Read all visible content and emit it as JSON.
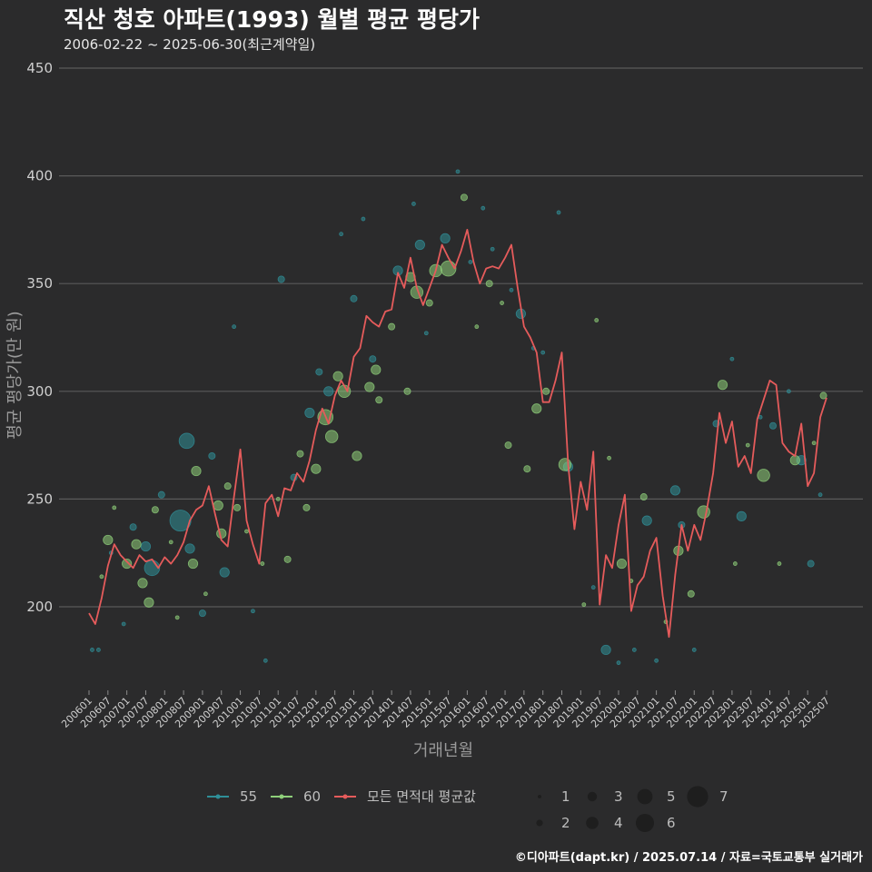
{
  "header": {
    "title": "직산 청호 아파트(1993) 월별 평균 평당가",
    "subtitle": "2006-02-22 ~ 2025-06-30(최근계약일)"
  },
  "footer": {
    "credit": "©디아파트(dapt.kr) / 2025.07.14 / 자료=국토교통부 실거래가"
  },
  "colors": {
    "background": "#2b2b2c",
    "grid": "#5a5a5a",
    "area55": "#2f8f98",
    "area60": "#8fd07a",
    "average": "#e55b5b"
  },
  "chart_data": {
    "type": "line+scatter",
    "title": "직산 청호 아파트(1993) 월별 평균 평당가",
    "xlabel": "거래년월",
    "ylabel": "평균 평당가(만 원)",
    "ylim": [
      160,
      450
    ],
    "yticks": [
      200,
      250,
      300,
      350,
      400,
      450
    ],
    "xlim": [
      "2006-01",
      "2025-07"
    ],
    "xticks": [
      "200601",
      "200607",
      "200701",
      "200707",
      "200801",
      "200807",
      "200901",
      "200907",
      "201001",
      "201007",
      "201101",
      "201107",
      "201201",
      "201207",
      "201301",
      "201307",
      "201401",
      "201407",
      "201501",
      "201507",
      "201601",
      "201607",
      "201701",
      "201707",
      "201801",
      "201807",
      "201901",
      "201907",
      "202001",
      "202007",
      "202101",
      "202107",
      "202201",
      "202207",
      "202301",
      "202307",
      "202401",
      "202407",
      "202501",
      "202507"
    ],
    "legend": {
      "series": [
        {
          "name": "55",
          "color": "#2f8f98"
        },
        {
          "name": "60",
          "color": "#8fd07a"
        },
        {
          "name": "모든 면적대 평균값",
          "color": "#e55b5b"
        }
      ],
      "sizes": [
        "1",
        "2",
        "3",
        "4",
        "5",
        "6",
        "7"
      ]
    },
    "average_line": {
      "name": "모든 면적대 평균값",
      "points": [
        [
          "2006-01",
          197
        ],
        [
          "2006-03",
          192
        ],
        [
          "2006-05",
          204
        ],
        [
          "2006-07",
          219
        ],
        [
          "2006-09",
          229
        ],
        [
          "2006-11",
          224
        ],
        [
          "2007-01",
          221
        ],
        [
          "2007-03",
          218
        ],
        [
          "2007-05",
          224
        ],
        [
          "2007-07",
          221
        ],
        [
          "2007-09",
          222
        ],
        [
          "2007-11",
          218
        ],
        [
          "2008-01",
          223
        ],
        [
          "2008-03",
          220
        ],
        [
          "2008-05",
          224
        ],
        [
          "2008-07",
          230
        ],
        [
          "2008-09",
          240
        ],
        [
          "2008-11",
          245
        ],
        [
          "2009-01",
          247
        ],
        [
          "2009-03",
          256
        ],
        [
          "2009-05",
          243
        ],
        [
          "2009-07",
          231
        ],
        [
          "2009-09",
          228
        ],
        [
          "2009-11",
          251
        ],
        [
          "2010-01",
          273
        ],
        [
          "2010-03",
          240
        ],
        [
          "2010-05",
          229
        ],
        [
          "2010-07",
          220
        ],
        [
          "2010-09",
          248
        ],
        [
          "2010-11",
          252
        ],
        [
          "2011-01",
          242
        ],
        [
          "2011-03",
          255
        ],
        [
          "2011-05",
          254
        ],
        [
          "2011-07",
          262
        ],
        [
          "2011-09",
          258
        ],
        [
          "2011-11",
          268
        ],
        [
          "2012-01",
          282
        ],
        [
          "2012-03",
          292
        ],
        [
          "2012-05",
          285
        ],
        [
          "2012-07",
          298
        ],
        [
          "2012-09",
          305
        ],
        [
          "2012-11",
          300
        ],
        [
          "2013-01",
          316
        ],
        [
          "2013-03",
          320
        ],
        [
          "2013-05",
          335
        ],
        [
          "2013-07",
          332
        ],
        [
          "2013-09",
          330
        ],
        [
          "2013-11",
          337
        ],
        [
          "2014-01",
          338
        ],
        [
          "2014-03",
          355
        ],
        [
          "2014-05",
          348
        ],
        [
          "2014-07",
          362
        ],
        [
          "2014-09",
          348
        ],
        [
          "2014-11",
          340
        ],
        [
          "2015-01",
          348
        ],
        [
          "2015-03",
          356
        ],
        [
          "2015-05",
          368
        ],
        [
          "2015-07",
          362
        ],
        [
          "2015-09",
          357
        ],
        [
          "2015-11",
          365
        ],
        [
          "2016-01",
          375
        ],
        [
          "2016-03",
          360
        ],
        [
          "2016-05",
          350
        ],
        [
          "2016-07",
          357
        ],
        [
          "2016-09",
          358
        ],
        [
          "2016-11",
          357
        ],
        [
          "2017-01",
          362
        ],
        [
          "2017-03",
          368
        ],
        [
          "2017-05",
          348
        ],
        [
          "2017-07",
          330
        ],
        [
          "2017-09",
          325
        ],
        [
          "2017-11",
          318
        ],
        [
          "2018-01",
          295
        ],
        [
          "2018-03",
          295
        ],
        [
          "2018-05",
          305
        ],
        [
          "2018-07",
          318
        ],
        [
          "2018-09",
          266
        ],
        [
          "2018-11",
          236
        ],
        [
          "2019-01",
          258
        ],
        [
          "2019-03",
          245
        ],
        [
          "2019-05",
          272
        ],
        [
          "2019-07",
          201
        ],
        [
          "2019-09",
          224
        ],
        [
          "2019-11",
          218
        ],
        [
          "2020-01",
          238
        ],
        [
          "2020-03",
          252
        ],
        [
          "2020-05",
          198
        ],
        [
          "2020-07",
          210
        ],
        [
          "2020-09",
          214
        ],
        [
          "2020-11",
          226
        ],
        [
          "2021-01",
          232
        ],
        [
          "2021-03",
          205
        ],
        [
          "2021-05",
          186
        ],
        [
          "2021-07",
          215
        ],
        [
          "2021-09",
          238
        ],
        [
          "2021-11",
          226
        ],
        [
          "2022-01",
          238
        ],
        [
          "2022-03",
          231
        ],
        [
          "2022-05",
          245
        ],
        [
          "2022-07",
          262
        ],
        [
          "2022-09",
          290
        ],
        [
          "2022-11",
          276
        ],
        [
          "2023-01",
          286
        ],
        [
          "2023-03",
          265
        ],
        [
          "2023-05",
          270
        ],
        [
          "2023-07",
          262
        ],
        [
          "2023-09",
          287
        ],
        [
          "2023-11",
          296
        ],
        [
          "2024-01",
          305
        ],
        [
          "2024-03",
          303
        ],
        [
          "2024-05",
          276
        ],
        [
          "2024-07",
          272
        ],
        [
          "2024-09",
          270
        ],
        [
          "2024-11",
          285
        ],
        [
          "2025-01",
          256
        ],
        [
          "2025-03",
          262
        ],
        [
          "2025-05",
          288
        ],
        [
          "2025-07",
          297
        ]
      ]
    },
    "scatter": [
      {
        "series": "55",
        "points": [
          [
            "2006-02",
            180,
            1
          ],
          [
            "2006-04",
            180,
            1
          ],
          [
            "2006-08",
            225,
            1
          ],
          [
            "2006-12",
            192,
            1
          ],
          [
            "2007-03",
            237,
            2
          ],
          [
            "2007-07",
            228,
            3
          ],
          [
            "2007-09",
            218,
            5
          ],
          [
            "2007-12",
            252,
            2
          ],
          [
            "2008-06",
            240,
            7
          ],
          [
            "2008-08",
            277,
            5
          ],
          [
            "2008-09",
            227,
            3
          ],
          [
            "2009-01",
            197,
            2
          ],
          [
            "2009-04",
            270,
            2
          ],
          [
            "2009-08",
            216,
            3
          ],
          [
            "2009-11",
            330,
            1
          ],
          [
            "2010-05",
            198,
            1
          ],
          [
            "2010-09",
            175,
            1
          ],
          [
            "2011-02",
            352,
            2
          ],
          [
            "2011-06",
            260,
            2
          ],
          [
            "2011-11",
            290,
            3
          ],
          [
            "2012-02",
            309,
            2
          ],
          [
            "2012-05",
            300,
            3
          ],
          [
            "2012-09",
            373,
            1
          ],
          [
            "2013-01",
            343,
            2
          ],
          [
            "2013-04",
            380,
            1
          ],
          [
            "2013-07",
            315,
            2
          ],
          [
            "2014-03",
            356,
            3
          ],
          [
            "2014-08",
            387,
            1
          ],
          [
            "2014-10",
            368,
            3
          ],
          [
            "2014-12",
            327,
            1
          ],
          [
            "2015-06",
            371,
            3
          ],
          [
            "2015-10",
            402,
            1
          ],
          [
            "2016-02",
            360,
            1
          ],
          [
            "2016-06",
            385,
            1
          ],
          [
            "2016-09",
            366,
            1
          ],
          [
            "2017-03",
            347,
            1
          ],
          [
            "2017-06",
            336,
            3
          ],
          [
            "2017-10",
            320,
            1
          ],
          [
            "2018-01",
            318,
            1
          ],
          [
            "2018-06",
            383,
            1
          ],
          [
            "2018-09",
            265,
            3
          ],
          [
            "2019-05",
            209,
            1
          ],
          [
            "2019-09",
            180,
            3
          ],
          [
            "2020-01",
            174,
            1
          ],
          [
            "2020-06",
            180,
            1
          ],
          [
            "2020-10",
            240,
            3
          ],
          [
            "2021-01",
            175,
            1
          ],
          [
            "2021-07",
            254,
            3
          ],
          [
            "2021-09",
            238,
            2
          ],
          [
            "2022-01",
            180,
            1
          ],
          [
            "2022-08",
            285,
            2
          ],
          [
            "2023-01",
            315,
            1
          ],
          [
            "2023-04",
            242,
            3
          ],
          [
            "2023-10",
            288,
            1
          ],
          [
            "2024-02",
            284,
            2
          ],
          [
            "2024-07",
            300,
            1
          ],
          [
            "2024-11",
            268,
            3
          ],
          [
            "2025-02",
            220,
            2
          ],
          [
            "2025-05",
            252,
            1
          ]
        ]
      },
      {
        "series": "60",
        "points": [
          [
            "2006-05",
            214,
            1
          ],
          [
            "2006-07",
            231,
            3
          ],
          [
            "2006-09",
            246,
            1
          ],
          [
            "2007-01",
            220,
            3
          ],
          [
            "2007-04",
            229,
            3
          ],
          [
            "2007-06",
            211,
            3
          ],
          [
            "2007-08",
            202,
            3
          ],
          [
            "2007-10",
            245,
            2
          ],
          [
            "2008-03",
            230,
            1
          ],
          [
            "2008-05",
            195,
            1
          ],
          [
            "2008-10",
            220,
            3
          ],
          [
            "2008-11",
            263,
            3
          ],
          [
            "2009-02",
            206,
            1
          ],
          [
            "2009-06",
            247,
            3
          ],
          [
            "2009-07",
            234,
            3
          ],
          [
            "2009-09",
            256,
            2
          ],
          [
            "2009-12",
            246,
            2
          ],
          [
            "2010-03",
            235,
            1
          ],
          [
            "2010-08",
            220,
            1
          ],
          [
            "2011-01",
            250,
            1
          ],
          [
            "2011-04",
            222,
            2
          ],
          [
            "2011-08",
            271,
            2
          ],
          [
            "2011-10",
            246,
            2
          ],
          [
            "2012-01",
            264,
            3
          ],
          [
            "2012-04",
            288,
            5
          ],
          [
            "2012-06",
            279,
            4
          ],
          [
            "2012-08",
            307,
            3
          ],
          [
            "2012-10",
            300,
            4
          ],
          [
            "2013-02",
            270,
            3
          ],
          [
            "2013-06",
            302,
            3
          ],
          [
            "2013-08",
            310,
            3
          ],
          [
            "2013-09",
            296,
            2
          ],
          [
            "2014-01",
            330,
            2
          ],
          [
            "2014-06",
            300,
            2
          ],
          [
            "2014-07",
            353,
            3
          ],
          [
            "2014-09",
            346,
            4
          ],
          [
            "2015-01",
            341,
            2
          ],
          [
            "2015-03",
            356,
            4
          ],
          [
            "2015-07",
            357,
            5
          ],
          [
            "2015-12",
            390,
            2
          ],
          [
            "2016-04",
            330,
            1
          ],
          [
            "2016-08",
            350,
            2
          ],
          [
            "2016-12",
            341,
            1
          ],
          [
            "2017-02",
            275,
            2
          ],
          [
            "2017-08",
            264,
            2
          ],
          [
            "2017-11",
            292,
            3
          ],
          [
            "2018-02",
            300,
            2
          ],
          [
            "2018-08",
            266,
            4
          ],
          [
            "2019-02",
            201,
            1
          ],
          [
            "2019-06",
            333,
            1
          ],
          [
            "2019-10",
            269,
            1
          ],
          [
            "2020-02",
            220,
            3
          ],
          [
            "2020-05",
            212,
            1
          ],
          [
            "2020-09",
            251,
            2
          ],
          [
            "2021-04",
            193,
            1
          ],
          [
            "2021-08",
            226,
            3
          ],
          [
            "2021-12",
            206,
            2
          ],
          [
            "2022-04",
            244,
            4
          ],
          [
            "2022-10",
            303,
            3
          ],
          [
            "2023-02",
            220,
            1
          ],
          [
            "2023-06",
            275,
            1
          ],
          [
            "2023-11",
            261,
            4
          ],
          [
            "2024-04",
            220,
            1
          ],
          [
            "2024-09",
            268,
            3
          ],
          [
            "2025-03",
            276,
            1
          ],
          [
            "2025-06",
            298,
            2
          ]
        ]
      }
    ]
  }
}
